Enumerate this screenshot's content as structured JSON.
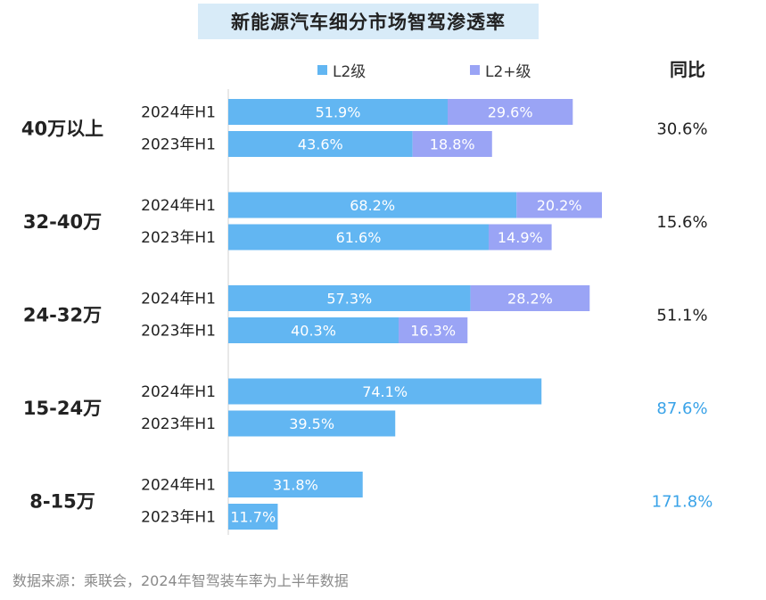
{
  "chart_data": {
    "type": "bar",
    "orientation": "horizontal",
    "stacked": true,
    "title": "新能源汽车细分市场智驾渗透率",
    "legend": [
      "L2级",
      "L2+级"
    ],
    "yoy_header": "同比",
    "colors": {
      "L2": "#62b6f2",
      "L2plus": "#9aa4f5",
      "yoy_highlight": "#3aa3e8",
      "yoy_normal": "#222222"
    },
    "groups": [
      {
        "label": "40万以上",
        "yoy": "30.6%",
        "yoy_highlight": false,
        "rows": [
          {
            "period": "2024年H1",
            "l2": 51.9,
            "l2_label": "51.9%",
            "l2plus": 29.6,
            "l2plus_label": "29.6%"
          },
          {
            "period": "2023年H1",
            "l2": 43.6,
            "l2_label": "43.6%",
            "l2plus": 18.8,
            "l2plus_label": "18.8%"
          }
        ]
      },
      {
        "label": "32-40万",
        "yoy": "15.6%",
        "yoy_highlight": false,
        "rows": [
          {
            "period": "2024年H1",
            "l2": 68.2,
            "l2_label": "68.2%",
            "l2plus": 20.2,
            "l2plus_label": "20.2%"
          },
          {
            "period": "2023年H1",
            "l2": 61.6,
            "l2_label": "61.6%",
            "l2plus": 14.9,
            "l2plus_label": "14.9%"
          }
        ]
      },
      {
        "label": "24-32万",
        "yoy": "51.1%",
        "yoy_highlight": false,
        "rows": [
          {
            "period": "2024年H1",
            "l2": 57.3,
            "l2_label": "57.3%",
            "l2plus": 28.2,
            "l2plus_label": "28.2%"
          },
          {
            "period": "2023年H1",
            "l2": 40.3,
            "l2_label": "40.3%",
            "l2plus": 16.3,
            "l2plus_label": "16.3%"
          }
        ]
      },
      {
        "label": "15-24万",
        "yoy": "87.6%",
        "yoy_highlight": true,
        "rows": [
          {
            "period": "2024年H1",
            "l2": 74.1,
            "l2_label": "74.1%",
            "l2plus": 0,
            "l2plus_label": ""
          },
          {
            "period": "2023年H1",
            "l2": 39.5,
            "l2_label": "39.5%",
            "l2plus": 0,
            "l2plus_label": ""
          }
        ]
      },
      {
        "label": "8-15万",
        "yoy": "171.8%",
        "yoy_highlight": true,
        "rows": [
          {
            "period": "2024年H1",
            "l2": 31.8,
            "l2_label": "31.8%",
            "l2plus": 0,
            "l2plus_label": ""
          },
          {
            "period": "2023年H1",
            "l2": 11.7,
            "l2_label": "11.7%",
            "l2plus": 0,
            "l2plus_label": ""
          }
        ]
      }
    ]
  },
  "footer": "数据来源：乘联会，2024年智驾装车率为上半年数据"
}
